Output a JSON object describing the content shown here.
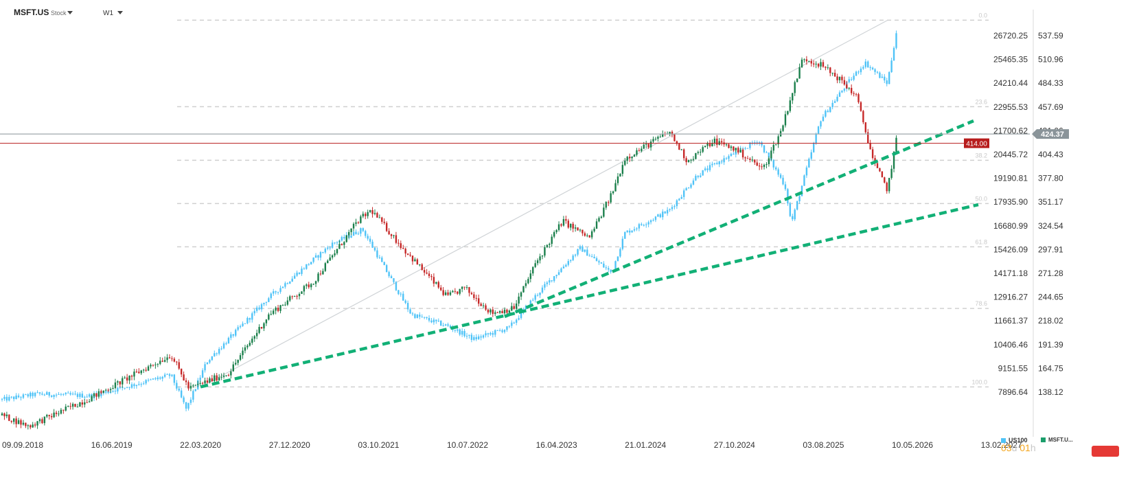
{
  "header": {
    "symbol": "MSFT.US",
    "symbol_type": "Stock",
    "timeframe": "W1"
  },
  "countdown": {
    "d_value": "03",
    "d_unit": "d",
    "h_value": "01",
    "h_unit": "h"
  },
  "legend": [
    {
      "label": "US100",
      "color": "#4fc3f7"
    },
    {
      "label": "MSFT.U...",
      "color": "#1b9e6b"
    }
  ],
  "colors": {
    "bull": "#1a7f4b",
    "bear": "#c62828",
    "us100": "#4fc3f7",
    "trendline": "#12b076",
    "fib": "#d0d0d0",
    "price_tag": "#8a9499",
    "level_tag": "#b71c1c"
  },
  "chart_data": {
    "type": "line",
    "title": "",
    "grid": false,
    "x_labels": [
      "09.09.2018",
      "16.06.2019",
      "22.03.2020",
      "27.12.2020",
      "03.10.2021",
      "10.07.2022",
      "16.04.2023",
      "21.01.2024",
      "27.10.2024",
      "03.08.2025",
      "10.05.2026",
      "13.02.2027"
    ],
    "y_axis_left_US100": [
      "26720.25",
      "25465.35",
      "24210.44",
      "22955.53",
      "21700.62",
      "20445.72",
      "19190.81",
      "17935.90",
      "16680.99",
      "15426.09",
      "14171.18",
      "12916.27",
      "11661.37",
      "10406.46",
      "9151.55",
      "7896.64"
    ],
    "y_axis_right_MSFT": [
      "537.59",
      "510.96",
      "484.33",
      "457.69",
      "431.06",
      "404.43",
      "377.80",
      "351.17",
      "324.54",
      "297.91",
      "271.28",
      "244.65",
      "218.02",
      "191.39",
      "164.75",
      "138.12"
    ],
    "fib_levels": [
      "0.0",
      "23.6",
      "38.2",
      "50.0",
      "61.8",
      "78.6",
      "100.0"
    ],
    "fib_range_msft": [
      144.0,
      555.0
    ],
    "current_price": "424.37",
    "horizontal_level": "414.00",
    "series": [
      {
        "name": "MSFT.U...",
        "kind": "candlestick",
        "unit": "USD",
        "x": [
          "09.09.2018",
          "16.06.2019",
          "22.03.2020",
          "27.12.2020",
          "03.10.2021",
          "10.07.2022",
          "16.04.2023",
          "21.01.2024",
          "27.10.2024",
          "03.08.2025",
          "current"
        ],
        "keypoints": [
          [
            0,
            112
          ],
          [
            0.3,
            100
          ],
          [
            1.0,
            132
          ],
          [
            1.9,
            180
          ],
          [
            2.1,
            142
          ],
          [
            2.55,
            160
          ],
          [
            3.0,
            225
          ],
          [
            3.5,
            262
          ],
          [
            4.0,
            330
          ],
          [
            4.15,
            342
          ],
          [
            4.5,
            300
          ],
          [
            5.0,
            245
          ],
          [
            5.2,
            255
          ],
          [
            5.5,
            227
          ],
          [
            5.75,
            232
          ],
          [
            6.0,
            283
          ],
          [
            6.3,
            330
          ],
          [
            6.6,
            311
          ],
          [
            6.85,
            360
          ],
          [
            7.0,
            400
          ],
          [
            7.2,
            412
          ],
          [
            7.5,
            430
          ],
          [
            7.7,
            397
          ],
          [
            8.0,
            420
          ],
          [
            8.25,
            410
          ],
          [
            8.55,
            388
          ],
          [
            8.75,
            430
          ],
          [
            9.0,
            513
          ],
          [
            9.2,
            505
          ],
          [
            9.4,
            490
          ],
          [
            9.6,
            470
          ],
          [
            9.8,
            395
          ],
          [
            9.95,
            365
          ],
          [
            10.05,
            420
          ]
        ]
      },
      {
        "name": "US100",
        "kind": "candlestick",
        "unit": "index",
        "keypoints": [
          [
            0,
            7500
          ],
          [
            0.4,
            7800
          ],
          [
            1.0,
            7700
          ],
          [
            1.9,
            8800
          ],
          [
            2.07,
            6994
          ],
          [
            2.3,
            9500
          ],
          [
            3.0,
            12900
          ],
          [
            3.7,
            15700
          ],
          [
            4.05,
            16500
          ],
          [
            4.6,
            12000
          ],
          [
            5.0,
            11400
          ],
          [
            5.3,
            10700
          ],
          [
            5.7,
            11300
          ],
          [
            6.0,
            13000
          ],
          [
            6.5,
            15500
          ],
          [
            6.85,
            14200
          ],
          [
            7.0,
            16300
          ],
          [
            7.5,
            17500
          ],
          [
            7.8,
            19300
          ],
          [
            8.0,
            19900
          ],
          [
            8.5,
            21200
          ],
          [
            8.8,
            18800
          ],
          [
            8.87,
            16800
          ],
          [
            9.2,
            22300
          ],
          [
            9.5,
            24200
          ],
          [
            9.7,
            25300
          ],
          [
            9.95,
            24200
          ],
          [
            10.05,
            26900
          ]
        ]
      }
    ],
    "trendlines": [
      {
        "from": [
          "22.03.2020",
          144
        ],
        "to": [
          "13.02.2027",
          330
        ],
        "style": "dashed"
      },
      {
        "from": [
          "22.03.2020",
          144
        ],
        "to": [
          "13.02.2027",
          435
        ],
        "style": "dashed"
      }
    ]
  }
}
